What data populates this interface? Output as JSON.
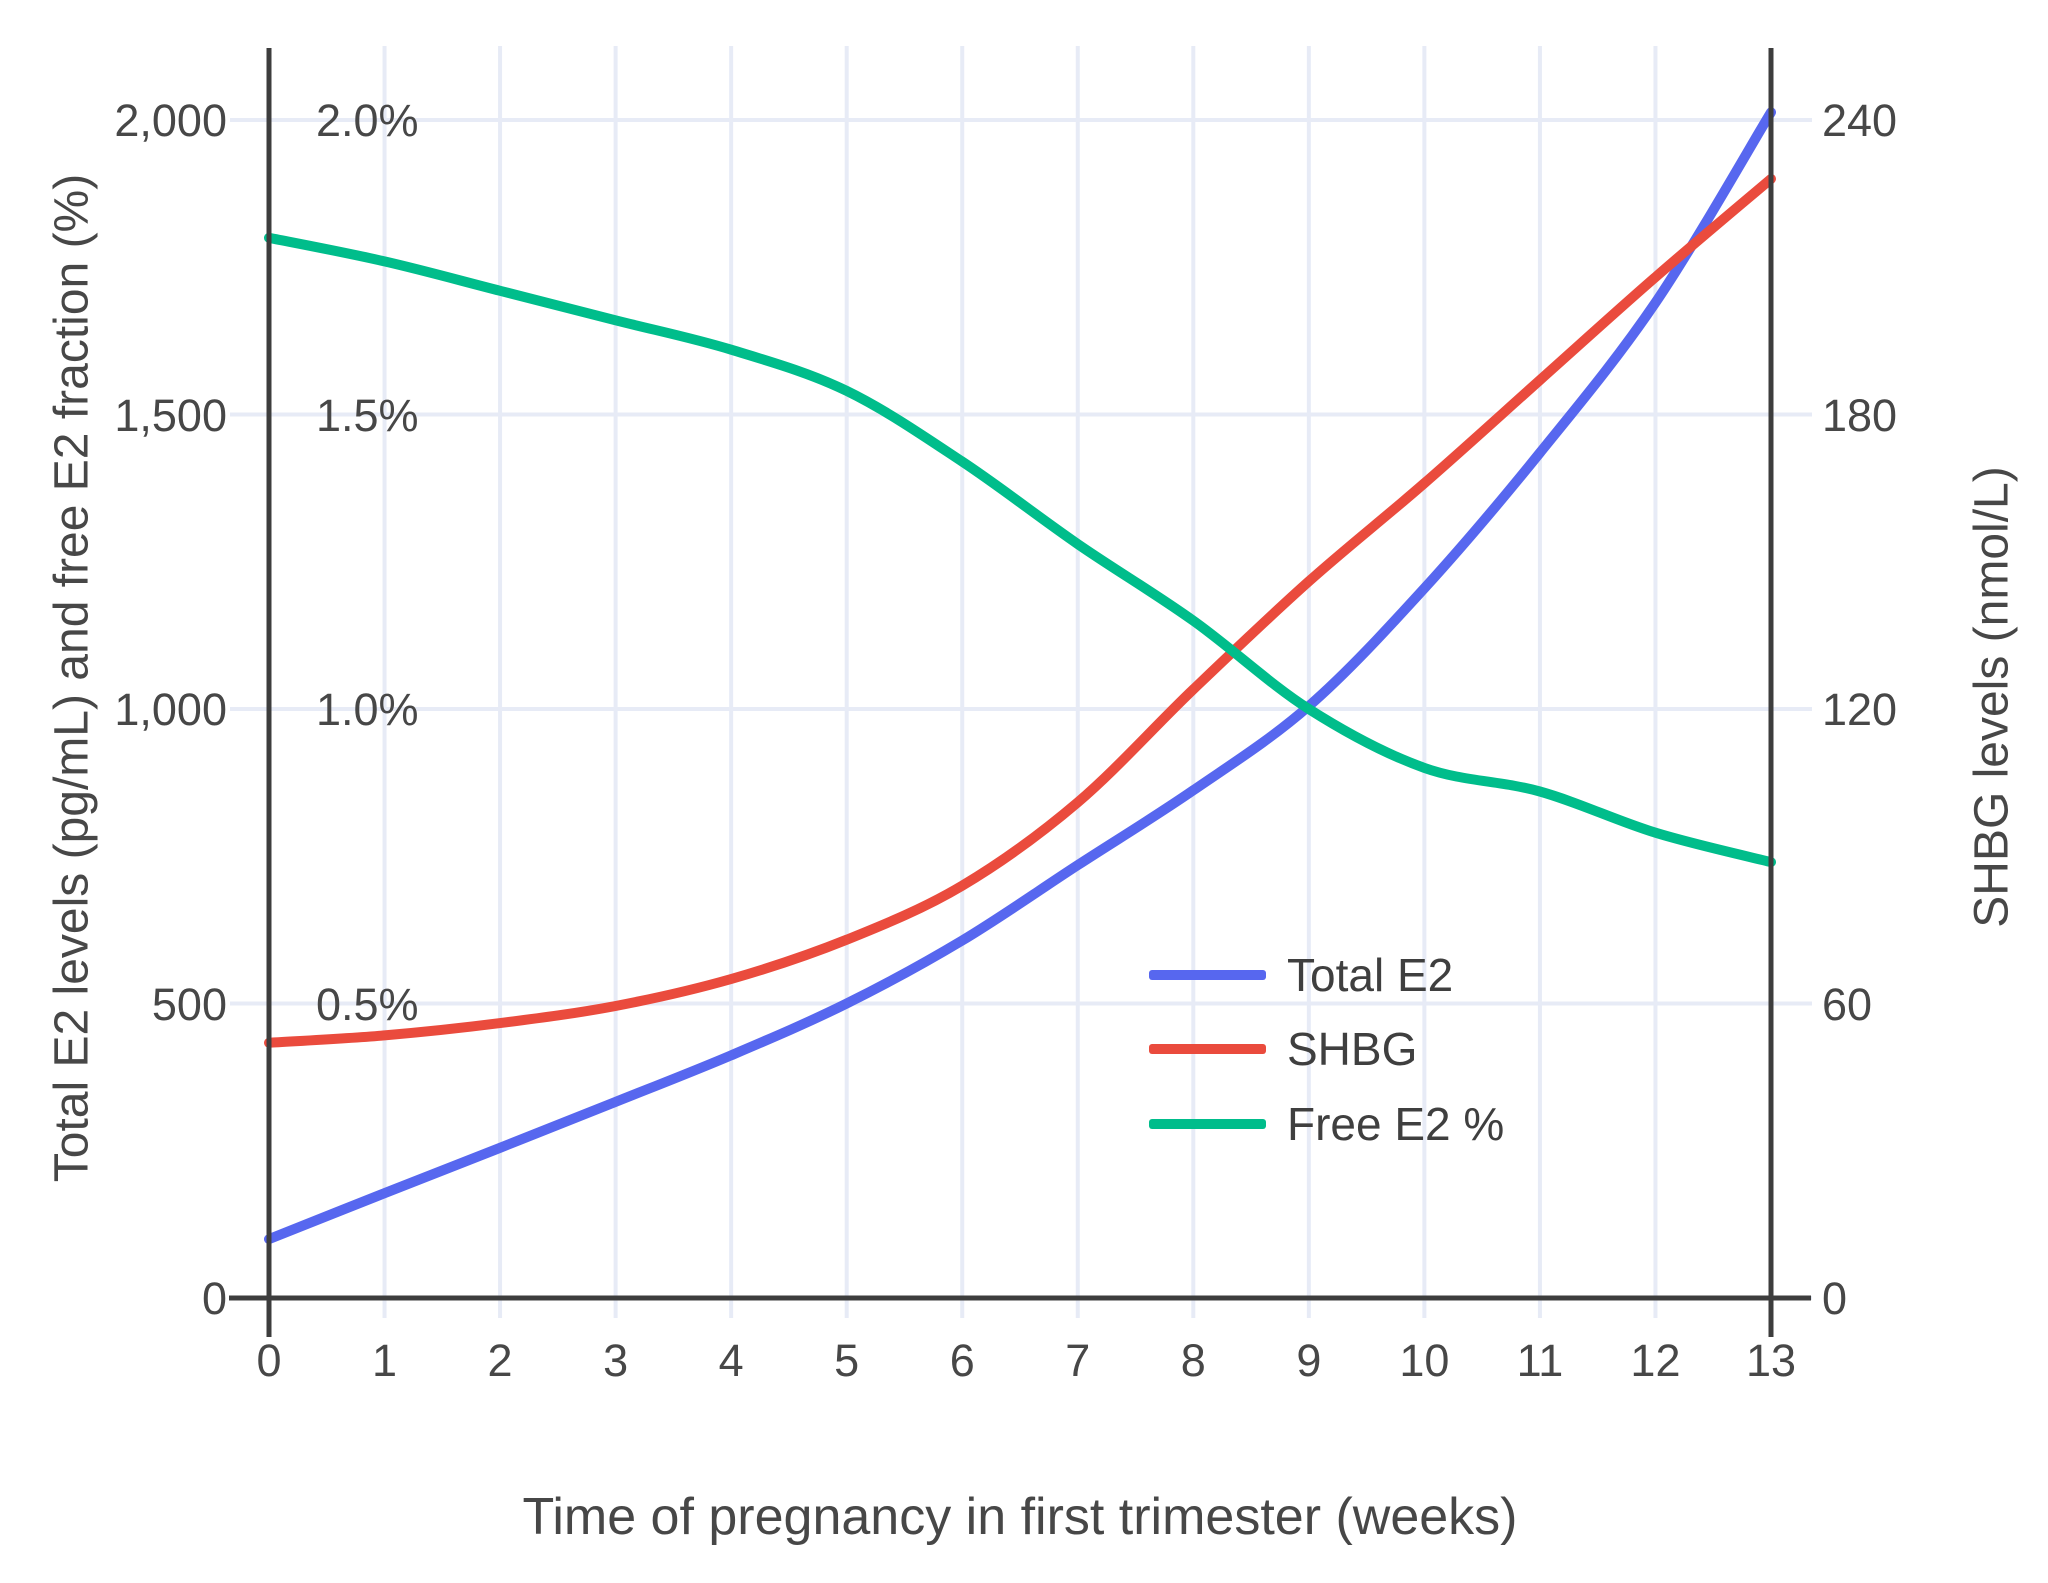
{
  "figure": {
    "x_axis_title": "Time of pregnancy in first trimester (weeks)",
    "left_axis_title": "Total E2 levels (pg/mL) and free E2 fraction (%)",
    "right_axis_title": "SHBG levels (nmol/L)"
  },
  "axes": {
    "x": {
      "tick_labels": [
        "0",
        "1",
        "2",
        "3",
        "4",
        "5",
        "6",
        "7",
        "8",
        "9",
        "10",
        "11",
        "12",
        "13"
      ],
      "tick_values": [
        0,
        1,
        2,
        3,
        4,
        5,
        6,
        7,
        8,
        9,
        10,
        11,
        12,
        13
      ]
    },
    "left": {
      "tick_labels": [
        "0",
        "500",
        "1,000",
        "1,500",
        "2,000"
      ],
      "tick_values": [
        0,
        500,
        1000,
        1500,
        2000
      ]
    },
    "left_percent": {
      "tick_labels": [
        "0.5%",
        "1.0%",
        "1.5%",
        "2.0%"
      ],
      "tick_values": [
        500,
        1000,
        1500,
        2000
      ]
    },
    "right": {
      "tick_labels": [
        "0",
        "60",
        "120",
        "180",
        "240"
      ],
      "tick_values": [
        0,
        60,
        120,
        180,
        240
      ]
    }
  },
  "legend": {
    "items": [
      {
        "label": "Total E2",
        "color": "#5767ef"
      },
      {
        "label": "SHBG",
        "color": "#ea4b3d"
      },
      {
        "label": "Free E2 %",
        "color": "#00bd8b"
      }
    ]
  },
  "colors": {
    "grid": "#e7ebf6",
    "axis_line": "#3d3d3d",
    "text": "#474747",
    "total_e2": "#5767ef",
    "shbg": "#ea4b3d",
    "free_e2": "#00bd8b",
    "background": "#ffffff"
  },
  "chart_data": {
    "type": "line",
    "title": "",
    "xlabel": "Time of pregnancy in first trimester (weeks)",
    "ylabel_left": "Total E2 levels (pg/mL) and free E2 fraction (%)",
    "ylabel_right": "SHBG levels (nmol/L)",
    "x": [
      0,
      1,
      2,
      3,
      4,
      5,
      6,
      7,
      8,
      9,
      10,
      11,
      12,
      13
    ],
    "x_range": [
      0,
      13
    ],
    "left_axis_range": [
      0,
      2120
    ],
    "right_axis_range": [
      0,
      254
    ],
    "grid": true,
    "legend_position": "inside-middle-right",
    "series": [
      {
        "name": "Total E2",
        "axis": "left",
        "units": "pg/mL",
        "color": "#5767ef",
        "values": [
          100,
          178,
          255,
          333,
          412,
          500,
          607,
          735,
          862,
          1005,
          1205,
          1435,
          1690,
          2013
        ]
      },
      {
        "name": "SHBG",
        "axis": "right",
        "units": "nmol/L",
        "color": "#ea4b3d",
        "values": [
          52,
          53.5,
          56,
          59.5,
          65,
          73,
          84,
          101,
          124,
          146,
          166,
          187,
          208,
          228
        ]
      },
      {
        "name": "Free E2 %",
        "axis": "left-percent",
        "units": "%",
        "color": "#00bd8b",
        "values": [
          1.8,
          1.76,
          1.71,
          1.66,
          1.61,
          1.54,
          1.42,
          1.28,
          1.15,
          1.0,
          0.9,
          0.86,
          0.79,
          0.74
        ]
      }
    ]
  }
}
